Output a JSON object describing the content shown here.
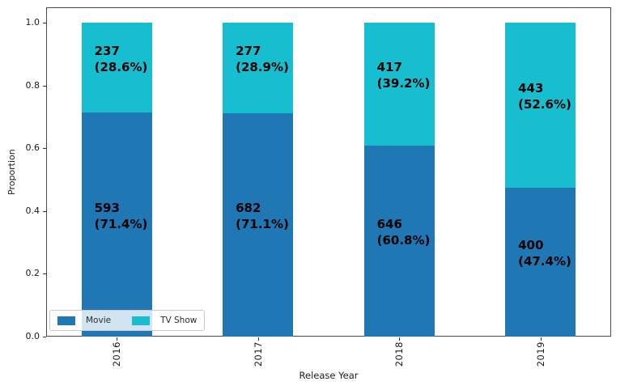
{
  "chart_data": {
    "type": "bar",
    "stacked": true,
    "xlabel": "Release Year",
    "ylabel": "Proportion",
    "categories": [
      "2016",
      "2017",
      "2018",
      "2019"
    ],
    "series": [
      {
        "name": "Movie",
        "color": "#1f77b4",
        "counts": [
          593,
          682,
          646,
          400
        ],
        "proportions": [
          0.714,
          0.711,
          0.608,
          0.474
        ],
        "labels": [
          "593\n(71.4%)",
          "682\n(71.1%)",
          "646\n(60.8%)",
          "400\n(47.4%)"
        ]
      },
      {
        "name": "TV Show",
        "color": "#17becf",
        "counts": [
          237,
          277,
          417,
          443
        ],
        "proportions": [
          0.286,
          0.289,
          0.392,
          0.526
        ],
        "labels": [
          "237\n(28.6%)",
          "277\n(28.9%)",
          "417\n(39.2%)",
          "443\n(52.6%)"
        ]
      }
    ],
    "y_ticks": [
      "0.0",
      "0.2",
      "0.4",
      "0.6",
      "0.8",
      "1.0"
    ],
    "ylim": [
      0,
      1.05
    ],
    "grid": false,
    "legend": {
      "position": "lower left",
      "items": [
        {
          "label": "Movie",
          "color": "#1f77b4"
        },
        {
          "label": "TV Show",
          "color": "#17becf"
        }
      ]
    }
  }
}
